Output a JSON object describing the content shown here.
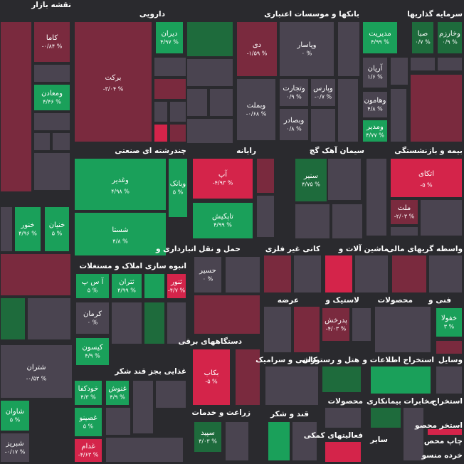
{
  "title": "نقشه بازار",
  "sectors": [
    "دارویی",
    "بانکها و موسسات اعتباری",
    "سرمایه گذاریها",
    "چندرشته ای صنعتی",
    "رایانه",
    "سیمان آهک گچ",
    "بیمه و بازنشستگی",
    "حمل و نقل انبارداری و",
    "کانی غیر فلزی",
    "ماشین آلات و",
    "واسطه گریهای مالی",
    "انبوه سازی املاک و مستغلات",
    "عرضه",
    "لاستیک و",
    "محصولات",
    "فنی و",
    "دستگاههای برقی",
    "کاشی و سرامیک",
    "هتل و رستوران",
    "استخراج اطلاعات و",
    "وسایل",
    "غذایی بجز قند شکر",
    "زراعت و خدمات",
    "قند و شکر",
    "محصولات",
    "فعالیتهای کمکی",
    "مخابرات",
    "استخراج",
    "بیمانکاری",
    "سایر",
    "استخر محصو",
    "چاپ محص",
    "خرده منسو"
  ],
  "stocks": [
    {
      "name": "کاما",
      "change": "-۰/۸۴ %",
      "color": "#7a2a3e"
    },
    {
      "name": "ومعادن",
      "change": "۴/۴۶ %",
      "color": "#1aa05a"
    },
    {
      "name": "برکت",
      "change": "-۳/۰۴ %",
      "color": "#7a2a3e"
    },
    {
      "name": "دیران",
      "change": "۴/۹۷ %",
      "color": "#1aa05a"
    },
    {
      "name": "دی",
      "change": "-۱/۵۹ %",
      "color": "#7a2a3e"
    },
    {
      "name": "وپاسار",
      "change": "۰ %",
      "color": "#4a4450"
    },
    {
      "name": "وپارس",
      "change": "-۰/۷ %",
      "color": "#4a4450"
    },
    {
      "name": "وتجارت",
      "change": "۰/۹ %",
      "color": "#4a4450"
    },
    {
      "name": "وبملت",
      "change": "-۰/۶۸ %",
      "color": "#4a4450"
    },
    {
      "name": "وبصادر",
      "change": "۰/۸ %",
      "color": "#4a4450"
    },
    {
      "name": "مدیریت",
      "change": "۴/۹۹ %",
      "color": "#1aa05a"
    },
    {
      "name": "صبا",
      "change": "۰/۷ %",
      "color": "#1e6b3c"
    },
    {
      "name": "وخارزم",
      "change": "۰/۹ %",
      "color": "#1e6b3c"
    },
    {
      "name": "آریان",
      "change": "۱/۶ %",
      "color": "#4a4450"
    },
    {
      "name": "وهامون",
      "change": "۴/۸ %",
      "color": "#4a4450"
    },
    {
      "name": "ومدیر",
      "change": "۴/۷۷ %",
      "color": "#1aa05a"
    },
    {
      "name": "وغدیر",
      "change": "۴/۹۸ %",
      "color": "#1aa05a"
    },
    {
      "name": "وبانک",
      "change": "۵ %",
      "color": "#1aa05a"
    },
    {
      "name": "شستا",
      "change": "۴/۸ %",
      "color": "#1aa05a"
    },
    {
      "name": "آپ",
      "change": "-۴/۹۳ %",
      "color": "#d4244a"
    },
    {
      "name": "تاپکیش",
      "change": "۴/۹۹ %",
      "color": "#1aa05a"
    },
    {
      "name": "سنیر",
      "change": "۴/۷۵ %",
      "color": "#1e6b3c"
    },
    {
      "name": "اتکای",
      "change": "-۵ %",
      "color": "#d4244a"
    },
    {
      "name": "ملت",
      "change": "-۲/۰۳ %",
      "color": "#7a2a3e"
    },
    {
      "name": "خنور",
      "change": "۴/۹۶ %",
      "color": "#1aa05a"
    },
    {
      "name": "خنیان",
      "change": "۵ %",
      "color": "#1aa05a"
    },
    {
      "name": "حسیر",
      "change": "۰ %",
      "color": "#4a4450"
    },
    {
      "name": "آ س پ",
      "change": "۵ %",
      "color": "#1aa05a"
    },
    {
      "name": "ثتران",
      "change": "۴/۹۹ %",
      "color": "#1aa05a"
    },
    {
      "name": "ثنور",
      "change": "-۴/۷ %",
      "color": "#d4244a"
    },
    {
      "name": "کرمان",
      "change": "۰ %",
      "color": "#4a4450"
    },
    {
      "name": "کیسون",
      "change": "۴/۹ %",
      "color": "#1aa05a"
    },
    {
      "name": "شتران",
      "change": "-۰/۵۳ %",
      "color": "#4a4450"
    },
    {
      "name": "پدرخش",
      "change": "-۴/۰۳ %",
      "color": "#7a2a3e"
    },
    {
      "name": "خفولا",
      "change": "۳ %",
      "color": "#1aa05a"
    },
    {
      "name": "بکاب",
      "change": "-۵ %",
      "color": "#d4244a"
    },
    {
      "name": "خودکفا",
      "change": "۴/۳ %",
      "color": "#1aa05a"
    },
    {
      "name": "غنوش",
      "change": "۴/۹ %",
      "color": "#1aa05a"
    },
    {
      "name": "غصینو",
      "change": "۵ %",
      "color": "#1aa05a"
    },
    {
      "name": "غدام",
      "change": "-۴/۶۳ %",
      "color": "#d4244a"
    },
    {
      "name": "سپید",
      "change": "۴/۰۳ %",
      "color": "#1e6b3c"
    },
    {
      "name": "شاوان",
      "change": "۵ %",
      "color": "#1aa05a"
    },
    {
      "name": "شبریز",
      "change": "-۰/۱۷ %",
      "color": "#4a4450"
    }
  ]
}
